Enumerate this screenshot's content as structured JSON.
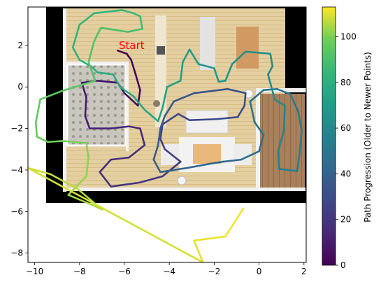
{
  "chart_data": {
    "type": "line",
    "title": "",
    "xlabel": "",
    "ylabel": "",
    "xlim": [
      -10.3,
      2.1
    ],
    "ylim": [
      -8.45,
      3.85
    ],
    "xticks": [
      -10,
      -8,
      -6,
      -4,
      -2,
      0,
      2
    ],
    "yticks": [
      -8,
      -6,
      -4,
      -2,
      0,
      2
    ],
    "xtick_labels": [
      "−10",
      "−8",
      "−6",
      "−4",
      "−2",
      "0",
      "2"
    ],
    "ytick_labels": [
      "−8",
      "−6",
      "−4",
      "−2",
      "0",
      "2"
    ],
    "grid": false,
    "background": "floor-plan image of an apartment (top-down render)",
    "annotation": {
      "text": "Start",
      "x": -6.25,
      "y": 2.0,
      "color": "#ff0000"
    },
    "colormap": "viridis",
    "colorbar": {
      "label": "Path Progression (Older to Newer Points)",
      "range": [
        0,
        113
      ],
      "ticks": [
        0,
        20,
        40,
        60,
        80,
        100
      ],
      "tick_labels": [
        "0",
        "20",
        "40",
        "60",
        "80",
        "100"
      ]
    },
    "path_points": [
      {
        "i": 0,
        "x": -6.3,
        "y": 1.75
      },
      {
        "i": 1,
        "x": -5.9,
        "y": 1.6
      },
      {
        "i": 2,
        "x": -5.7,
        "y": 1.3
      },
      {
        "i": 3,
        "x": -5.5,
        "y": 0.6
      },
      {
        "i": 4,
        "x": -5.3,
        "y": -0.15
      },
      {
        "i": 5,
        "x": -5.4,
        "y": -0.9
      },
      {
        "i": 6,
        "x": -6.0,
        "y": -0.3
      },
      {
        "i": 7,
        "x": -6.3,
        "y": 0.2
      },
      {
        "i": 8,
        "x": -7.2,
        "y": 0.3
      },
      {
        "i": 9,
        "x": -7.9,
        "y": 0.2
      },
      {
        "i": 10,
        "x": -7.7,
        "y": -0.5
      },
      {
        "i": 11,
        "x": -7.75,
        "y": -1.4
      },
      {
        "i": 12,
        "x": -7.55,
        "y": -2.0
      },
      {
        "i": 13,
        "x": -6.6,
        "y": -2.0
      },
      {
        "i": 14,
        "x": -5.8,
        "y": -1.9
      },
      {
        "i": 15,
        "x": -5.3,
        "y": -2.0
      },
      {
        "i": 16,
        "x": -5.1,
        "y": -2.8
      },
      {
        "i": 17,
        "x": -5.8,
        "y": -3.4
      },
      {
        "i": 18,
        "x": -6.6,
        "y": -3.5
      },
      {
        "i": 19,
        "x": -7.1,
        "y": -4.1
      },
      {
        "i": 20,
        "x": -6.6,
        "y": -4.8
      },
      {
        "i": 21,
        "x": -5.3,
        "y": -4.6
      },
      {
        "i": 22,
        "x": -4.3,
        "y": -4.3
      },
      {
        "i": 23,
        "x": -3.5,
        "y": -3.6
      },
      {
        "i": 24,
        "x": -4.2,
        "y": -3.0
      },
      {
        "i": 25,
        "x": -4.4,
        "y": -2.5
      },
      {
        "i": 26,
        "x": -4.3,
        "y": -1.8
      },
      {
        "i": 27,
        "x": -3.6,
        "y": -1.3
      },
      {
        "i": 28,
        "x": -3.1,
        "y": -1.6
      },
      {
        "i": 29,
        "x": -1.9,
        "y": -1.55
      },
      {
        "i": 30,
        "x": -0.95,
        "y": -1.45
      },
      {
        "i": 31,
        "x": -0.65,
        "y": -0.9
      },
      {
        "i": 32,
        "x": -0.6,
        "y": -0.3
      },
      {
        "i": 33,
        "x": -1.4,
        "y": -0.1
      },
      {
        "i": 34,
        "x": -2.9,
        "y": -0.3
      },
      {
        "i": 35,
        "x": -3.8,
        "y": -0.7
      },
      {
        "i": 36,
        "x": -4.2,
        "y": -1.4
      },
      {
        "i": 37,
        "x": -4.4,
        "y": -2.0
      },
      {
        "i": 38,
        "x": -4.5,
        "y": -2.8
      },
      {
        "i": 39,
        "x": -4.7,
        "y": -3.5
      },
      {
        "i": 40,
        "x": -4.4,
        "y": -4.1
      },
      {
        "i": 41,
        "x": -3.2,
        "y": -3.9
      },
      {
        "i": 42,
        "x": -2.2,
        "y": -3.7
      },
      {
        "i": 43,
        "x": -1.6,
        "y": -3.6
      },
      {
        "i": 44,
        "x": -0.8,
        "y": -3.5
      },
      {
        "i": 45,
        "x": 0.0,
        "y": -3.1
      },
      {
        "i": 46,
        "x": 0.2,
        "y": -2.3
      },
      {
        "i": 47,
        "x": -0.2,
        "y": -1.7
      },
      {
        "i": 48,
        "x": -0.4,
        "y": -0.7
      },
      {
        "i": 49,
        "x": 0.2,
        "y": -0.15
      },
      {
        "i": 50,
        "x": 0.8,
        "y": -0.1
      },
      {
        "i": 51,
        "x": 1.4,
        "y": -0.35
      },
      {
        "i": 52,
        "x": 1.75,
        "y": -1.2
      },
      {
        "i": 53,
        "x": 1.9,
        "y": -2.1
      },
      {
        "i": 54,
        "x": 1.8,
        "y": -3.3
      },
      {
        "i": 55,
        "x": 1.7,
        "y": -4.05
      },
      {
        "i": 56,
        "x": 0.9,
        "y": -3.95
      },
      {
        "i": 57,
        "x": 0.85,
        "y": -3.1
      },
      {
        "i": 58,
        "x": 1.1,
        "y": -2.1
      },
      {
        "i": 59,
        "x": 1.15,
        "y": -0.9
      },
      {
        "i": 60,
        "x": 0.7,
        "y": -0.6
      },
      {
        "i": 61,
        "x": 0.4,
        "y": 0.6
      },
      {
        "i": 62,
        "x": 0.6,
        "y": 1.0
      },
      {
        "i": 63,
        "x": 0.5,
        "y": 1.6
      },
      {
        "i": 64,
        "x": -0.6,
        "y": 1.7
      },
      {
        "i": 65,
        "x": -1.2,
        "y": 1.1
      },
      {
        "i": 66,
        "x": -1.5,
        "y": 0.3
      },
      {
        "i": 67,
        "x": -1.8,
        "y": 0.25
      },
      {
        "i": 68,
        "x": -2.0,
        "y": 0.9
      },
      {
        "i": 69,
        "x": -2.7,
        "y": 1.1
      },
      {
        "i": 70,
        "x": -3.1,
        "y": 1.8
      },
      {
        "i": 71,
        "x": -3.4,
        "y": 1.2
      },
      {
        "i": 72,
        "x": -3.5,
        "y": 0.3
      },
      {
        "i": 73,
        "x": -4.1,
        "y": 0.0
      },
      {
        "i": 74,
        "x": -4.3,
        "y": -1.0
      },
      {
        "i": 75,
        "x": -4.5,
        "y": -1.65
      },
      {
        "i": 76,
        "x": -5.1,
        "y": -1.1
      },
      {
        "i": 77,
        "x": -5.6,
        "y": -0.45
      },
      {
        "i": 78,
        "x": -6.2,
        "y": 0.0
      },
      {
        "i": 79,
        "x": -6.5,
        "y": 0.6
      },
      {
        "i": 80,
        "x": -7.2,
        "y": 0.7
      },
      {
        "i": 81,
        "x": -7.5,
        "y": 1.0
      },
      {
        "i": 82,
        "x": -8.0,
        "y": 1.3
      },
      {
        "i": 83,
        "x": -8.3,
        "y": 1.9
      },
      {
        "i": 84,
        "x": -8.0,
        "y": 3.0
      },
      {
        "i": 85,
        "x": -7.35,
        "y": 3.55
      },
      {
        "i": 86,
        "x": -6.1,
        "y": 3.7
      },
      {
        "i": 87,
        "x": -5.6,
        "y": 3.55
      },
      {
        "i": 88,
        "x": -5.3,
        "y": 3.4
      },
      {
        "i": 89,
        "x": -5.2,
        "y": 2.8
      },
      {
        "i": 90,
        "x": -5.85,
        "y": 2.65
      },
      {
        "i": 91,
        "x": -7.05,
        "y": 2.85
      },
      {
        "i": 92,
        "x": -7.35,
        "y": 2.2
      },
      {
        "i": 93,
        "x": -7.6,
        "y": 1.2
      },
      {
        "i": 94,
        "x": -7.3,
        "y": 0.3
      },
      {
        "i": 95,
        "x": -8.8,
        "y": -0.2
      },
      {
        "i": 96,
        "x": -9.75,
        "y": -0.6
      },
      {
        "i": 97,
        "x": -9.95,
        "y": -1.7
      },
      {
        "i": 98,
        "x": -9.9,
        "y": -2.4
      },
      {
        "i": 99,
        "x": -9.4,
        "y": -2.65
      },
      {
        "i": 100,
        "x": -8.75,
        "y": -2.6
      },
      {
        "i": 101,
        "x": -7.7,
        "y": -2.7
      },
      {
        "i": 102,
        "x": -7.6,
        "y": -3.4
      },
      {
        "i": 103,
        "x": -7.7,
        "y": -4.3
      },
      {
        "i": 104,
        "x": -8.5,
        "y": -5.2
      },
      {
        "i": 105,
        "x": -7.4,
        "y": -5.7
      },
      {
        "i": 106,
        "x": -7.0,
        "y": -5.9
      },
      {
        "i": 107,
        "x": -8.1,
        "y": -4.9
      },
      {
        "i": 108,
        "x": -9.3,
        "y": -4.2
      },
      {
        "i": 109,
        "x": -10.3,
        "y": -3.9
      },
      {
        "i": 110,
        "x": -2.5,
        "y": -8.45
      },
      {
        "i": 111,
        "x": -2.9,
        "y": -7.4
      },
      {
        "i": 112,
        "x": -1.5,
        "y": -7.2
      },
      {
        "i": 113,
        "x": -0.7,
        "y": -5.85
      }
    ]
  }
}
